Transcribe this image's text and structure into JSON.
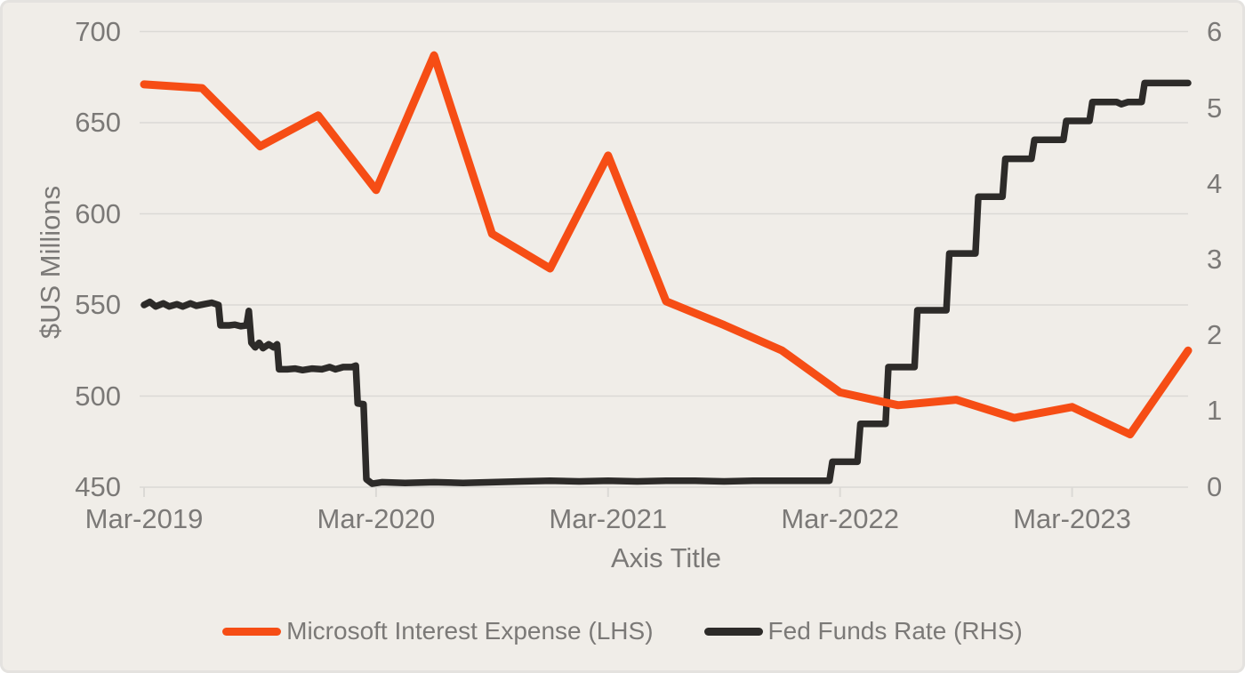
{
  "colors": {
    "background": "#F0EDE8",
    "border": "#E4E2DF",
    "gridline": "#DBD9D5",
    "text": "#7B7977",
    "msft_orange": "#F64D15",
    "fed_black": "#2D2B29"
  },
  "chart_data": {
    "type": "line",
    "title": "",
    "xlabel": "Axis Title",
    "ylabel": "$US Millions",
    "grid": "horizontal-only",
    "legend_position": "bottom-center",
    "left_axis": {
      "label": "$US Millions",
      "lim": [
        450,
        700
      ],
      "ticks": [
        450,
        500,
        550,
        600,
        650,
        700
      ]
    },
    "right_axis": {
      "lim": [
        0,
        6
      ],
      "ticks": [
        0,
        1,
        2,
        3,
        4,
        5,
        6
      ]
    },
    "x_axis": {
      "tick_labels": [
        "Mar-2019",
        "Mar-2020",
        "Mar-2021",
        "Mar-2022",
        "Mar-2023"
      ],
      "tick_months": [
        0,
        12,
        24,
        36,
        48
      ],
      "range_months": [
        0,
        54
      ],
      "unit": "months since Mar-2019, quarterly data ending Sep-2023"
    },
    "series": [
      {
        "name": "Microsoft Interest Expense (LHS)",
        "axis": "left",
        "color": "#F64D15",
        "stroke_width": 9,
        "z": 1,
        "points": [
          [
            0,
            671
          ],
          [
            3,
            669
          ],
          [
            6,
            637
          ],
          [
            9,
            654
          ],
          [
            12,
            613
          ],
          [
            15,
            687
          ],
          [
            18,
            589
          ],
          [
            21,
            570
          ],
          [
            24,
            632
          ],
          [
            27,
            552
          ],
          [
            30,
            539
          ],
          [
            33,
            525
          ],
          [
            36,
            502
          ],
          [
            39,
            495
          ],
          [
            42,
            498
          ],
          [
            45,
            488
          ],
          [
            48,
            494
          ],
          [
            51,
            479
          ],
          [
            54,
            525
          ]
        ]
      },
      {
        "name": "Fed Funds Rate (RHS)",
        "axis": "right",
        "color": "#2D2B29",
        "stroke_width": 7.5,
        "z": 0,
        "points": [
          [
            0,
            2.4
          ],
          [
            0.3,
            2.44
          ],
          [
            0.6,
            2.38
          ],
          [
            1.0,
            2.42
          ],
          [
            1.3,
            2.38
          ],
          [
            1.7,
            2.41
          ],
          [
            2.0,
            2.38
          ],
          [
            2.4,
            2.42
          ],
          [
            2.7,
            2.39
          ],
          [
            3.1,
            2.41
          ],
          [
            3.5,
            2.43
          ],
          [
            3.85,
            2.4
          ],
          [
            3.95,
            2.13
          ],
          [
            4.4,
            2.13
          ],
          [
            4.7,
            2.14
          ],
          [
            5.0,
            2.12
          ],
          [
            5.3,
            2.13
          ],
          [
            5.42,
            2.32
          ],
          [
            5.55,
            1.9
          ],
          [
            5.75,
            1.84
          ],
          [
            5.95,
            1.9
          ],
          [
            6.15,
            1.83
          ],
          [
            6.45,
            1.88
          ],
          [
            6.7,
            1.84
          ],
          [
            6.88,
            1.88
          ],
          [
            6.98,
            1.55
          ],
          [
            7.4,
            1.55
          ],
          [
            7.8,
            1.56
          ],
          [
            8.2,
            1.54
          ],
          [
            8.7,
            1.56
          ],
          [
            9.2,
            1.55
          ],
          [
            9.6,
            1.58
          ],
          [
            9.9,
            1.55
          ],
          [
            10.3,
            1.58
          ],
          [
            10.75,
            1.58
          ],
          [
            10.95,
            1.6
          ],
          [
            11.05,
            1.1
          ],
          [
            11.35,
            1.09
          ],
          [
            11.5,
            0.1
          ],
          [
            11.8,
            0.04
          ],
          [
            12.3,
            0.06
          ],
          [
            13.5,
            0.05
          ],
          [
            15,
            0.06
          ],
          [
            16.5,
            0.05
          ],
          [
            18,
            0.06
          ],
          [
            19.5,
            0.07
          ],
          [
            21,
            0.08
          ],
          [
            22.5,
            0.07
          ],
          [
            24,
            0.08
          ],
          [
            25.5,
            0.07
          ],
          [
            27,
            0.08
          ],
          [
            28.5,
            0.08
          ],
          [
            30,
            0.07
          ],
          [
            31.5,
            0.08
          ],
          [
            33,
            0.08
          ],
          [
            34.5,
            0.08
          ],
          [
            35.45,
            0.08
          ],
          [
            35.6,
            0.33
          ],
          [
            36.9,
            0.33
          ],
          [
            37.05,
            0.83
          ],
          [
            38.35,
            0.83
          ],
          [
            38.5,
            1.58
          ],
          [
            39.85,
            1.58
          ],
          [
            40.0,
            2.33
          ],
          [
            41.5,
            2.33
          ],
          [
            41.65,
            3.08
          ],
          [
            43.0,
            3.08
          ],
          [
            43.15,
            3.83
          ],
          [
            44.4,
            3.83
          ],
          [
            44.55,
            4.33
          ],
          [
            45.9,
            4.33
          ],
          [
            46.05,
            4.58
          ],
          [
            47.55,
            4.58
          ],
          [
            47.7,
            4.83
          ],
          [
            48.9,
            4.83
          ],
          [
            49.05,
            5.08
          ],
          [
            50.3,
            5.08
          ],
          [
            50.55,
            5.05
          ],
          [
            50.9,
            5.08
          ],
          [
            51.6,
            5.08
          ],
          [
            51.75,
            5.33
          ],
          [
            53,
            5.33
          ],
          [
            54,
            5.33
          ]
        ]
      }
    ]
  }
}
